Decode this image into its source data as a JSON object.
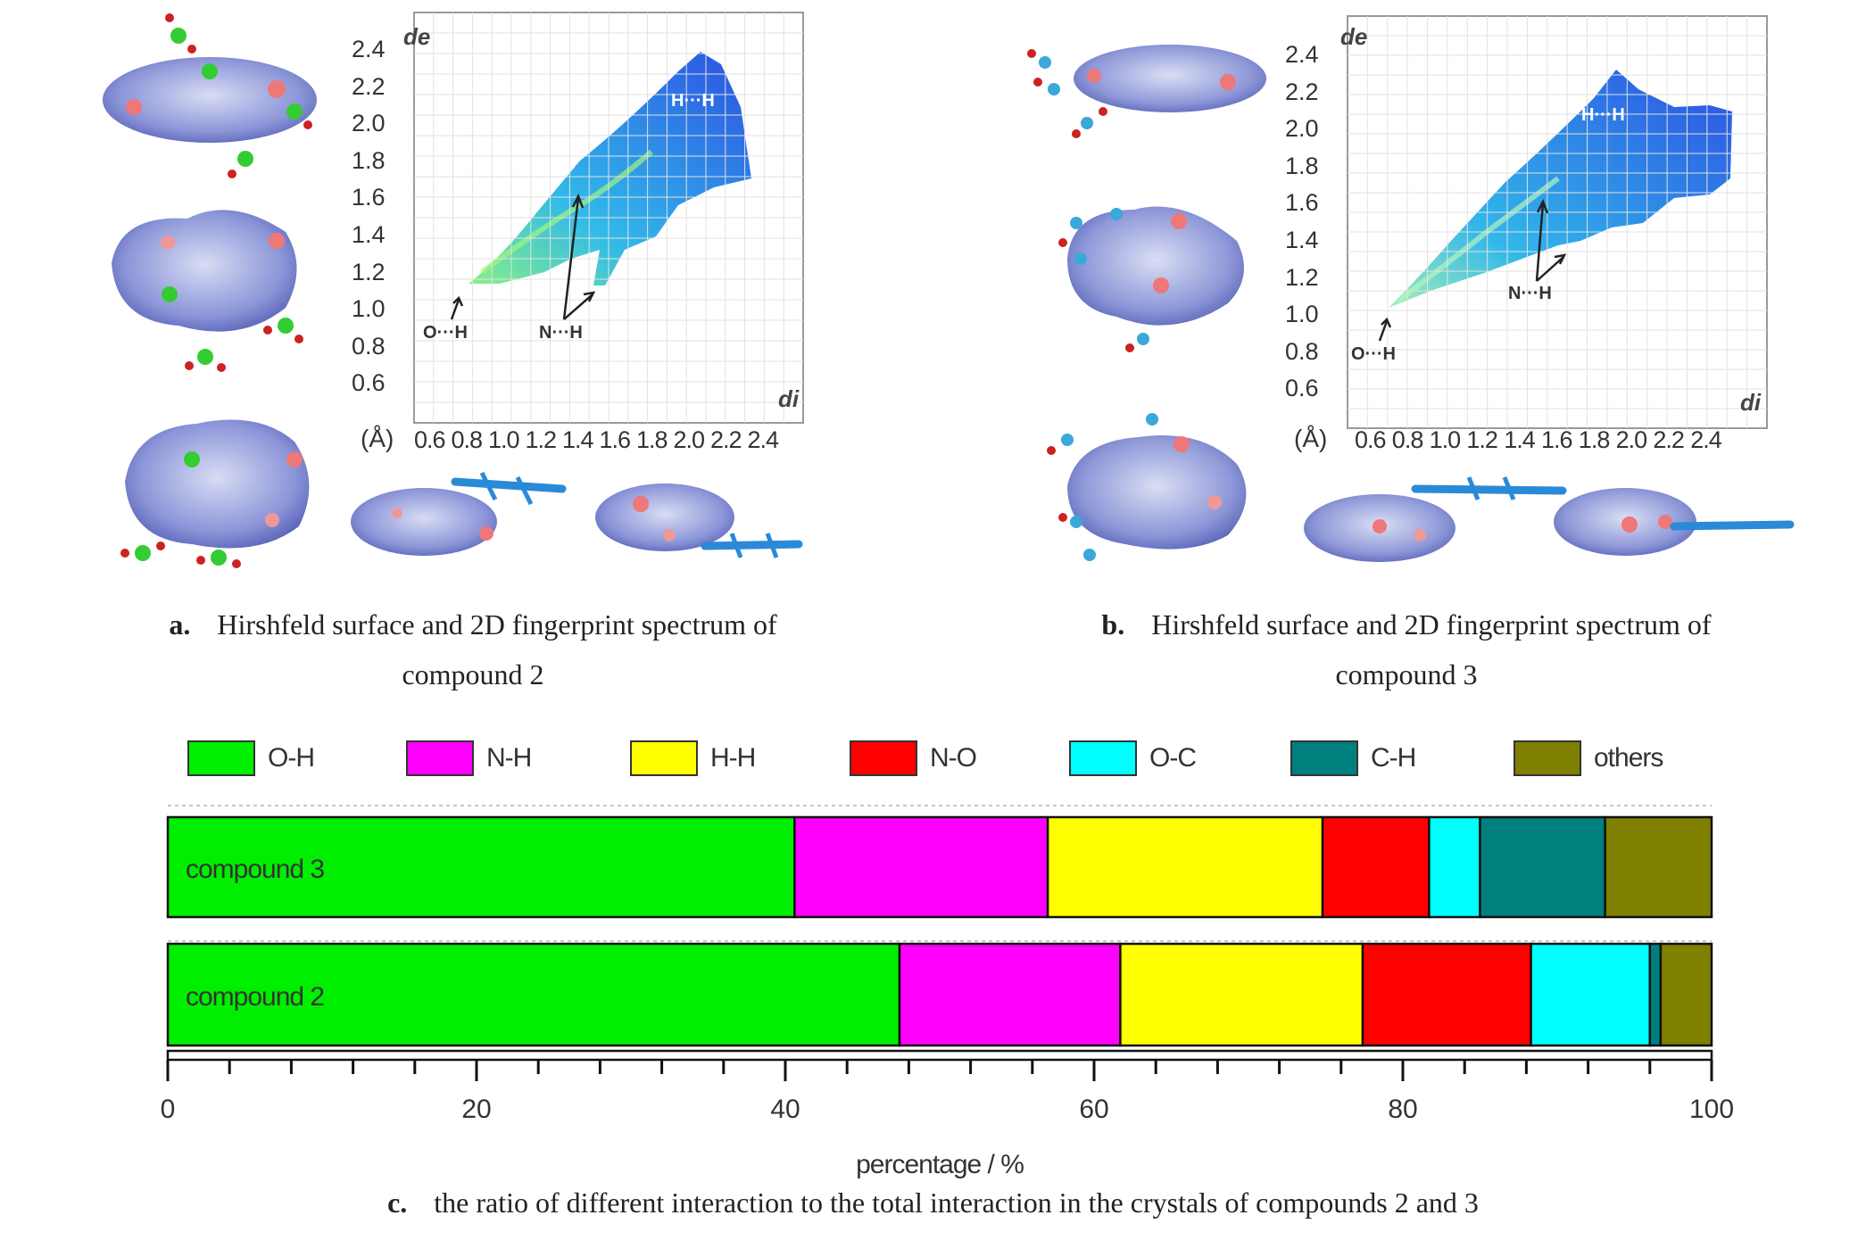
{
  "panel_a": {
    "caption_letter": "a.",
    "caption_line1": "Hirshfeld surface and 2D fingerprint spectrum of",
    "caption_line2": "compound 2",
    "de_label": "de",
    "di_label": "di",
    "unit_label": "(Å)",
    "y_ticks": [
      "2.4",
      "2.2",
      "2.0",
      "1.8",
      "1.6",
      "1.4",
      "1.2",
      "1.0",
      "0.8",
      "0.6"
    ],
    "x_ticks": [
      "0.6",
      "0.8",
      "1.0",
      "1.2",
      "1.4",
      "1.6",
      "1.8",
      "2.0",
      "2.2",
      "2.4"
    ],
    "annot_hh": "H···H",
    "annot_oh": "O···H",
    "annot_nh": "N···H"
  },
  "panel_b": {
    "caption_letter": "b.",
    "caption_line1": "Hirshfeld surface and 2D fingerprint spectrum of",
    "caption_line2": "compound 3",
    "de_label": "de",
    "di_label": "di",
    "unit_label": "(Å)",
    "y_ticks": [
      "2.4",
      "2.2",
      "2.0",
      "1.8",
      "1.6",
      "1.4",
      "1.2",
      "1.0",
      "0.8",
      "0.6"
    ],
    "x_ticks": [
      "0.6",
      "0.8",
      "1.0",
      "1.2",
      "1.4",
      "1.6",
      "1.8",
      "2.0",
      "2.2",
      "2.4"
    ],
    "annot_hh": "H···H",
    "annot_oh": "O···H",
    "annot_nh": "N···H"
  },
  "panel_c": {
    "caption_letter": "c.",
    "caption_text": "the ratio of different interaction to the total interaction in the crystals of compounds 2 and 3"
  },
  "chart_data": {
    "type": "bar",
    "orientation": "horizontal",
    "stacked": true,
    "categories": [
      "compound 3",
      "compound 2"
    ],
    "series": [
      {
        "name": "O-H",
        "color": "#00ee00",
        "values": [
          40.6,
          47.4
        ]
      },
      {
        "name": "N-H",
        "color": "#ff00ff",
        "values": [
          16.4,
          14.3
        ]
      },
      {
        "name": "H-H",
        "color": "#ffff00",
        "values": [
          17.8,
          15.7
        ]
      },
      {
        "name": "N-O",
        "color": "#ff0000",
        "values": [
          6.9,
          10.9
        ]
      },
      {
        "name": "O-C",
        "color": "#00ffff",
        "values": [
          3.3,
          7.7
        ]
      },
      {
        "name": "C-H",
        "color": "#007f7f",
        "values": [
          8.1,
          0.7
        ]
      },
      {
        "name": "others",
        "color": "#7f7f00",
        "values": [
          6.9,
          3.3
        ]
      }
    ],
    "xlabel": "percentage / %",
    "xlim": [
      0,
      100
    ],
    "x_ticks": [
      "0",
      "20",
      "40",
      "60",
      "80",
      "100"
    ],
    "legend_position": "top"
  }
}
